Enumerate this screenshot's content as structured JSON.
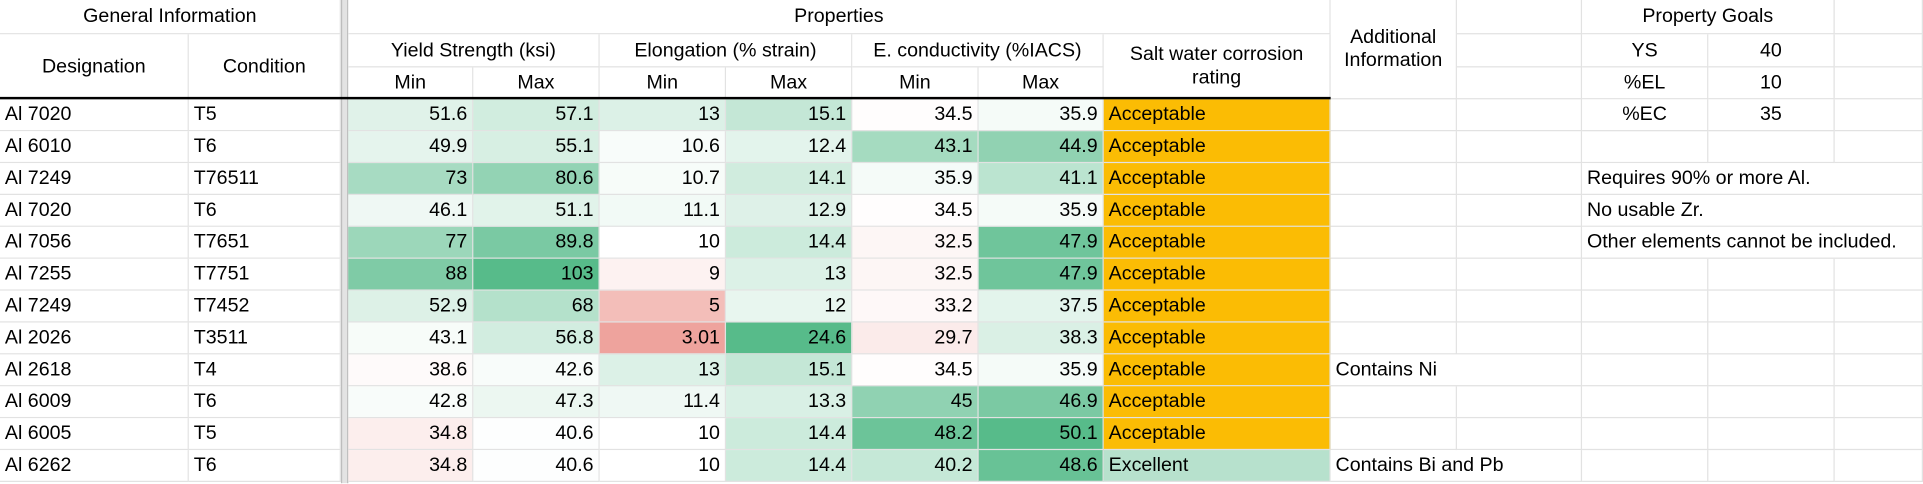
{
  "header": {
    "general_information": "General Information",
    "properties": "Properties",
    "additional_information": "Additional Information",
    "property_goals": "Property Goals"
  },
  "columns": {
    "designation": "Designation",
    "condition": "Condition",
    "rating": "Salt water corrosion rating",
    "groups": [
      "Yield Strength (ksi)",
      "Elongation (% strain)",
      "E. conductivity (%IACS)"
    ],
    "subheaders": [
      "Min",
      "Max",
      "Min",
      "Max",
      "Min",
      "Max"
    ]
  },
  "rows": [
    {
      "designation": "Al 7020",
      "condition": "T5",
      "values": [
        51.6,
        57.1,
        13,
        15.1,
        34.5,
        35.9
      ],
      "rating": "Acceptable"
    },
    {
      "designation": "Al 6010",
      "condition": "T6",
      "values": [
        49.9,
        55.1,
        10.6,
        12.4,
        43.1,
        44.9
      ],
      "rating": "Acceptable"
    },
    {
      "designation": "Al 7249",
      "condition": "T76511",
      "values": [
        73,
        80.6,
        10.7,
        14.1,
        35.9,
        41.1
      ],
      "rating": "Acceptable"
    },
    {
      "designation": "Al 7020",
      "condition": "T6",
      "values": [
        46.1,
        51.1,
        11.1,
        12.9,
        34.5,
        35.9
      ],
      "rating": "Acceptable"
    },
    {
      "designation": "Al 7056",
      "condition": "T7651",
      "values": [
        77,
        89.8,
        10,
        14.4,
        32.5,
        47.9
      ],
      "rating": "Acceptable"
    },
    {
      "designation": "Al 7255",
      "condition": "T7751",
      "values": [
        88,
        103,
        9,
        13,
        32.5,
        47.9
      ],
      "rating": "Acceptable"
    },
    {
      "designation": "Al 7249",
      "condition": "T7452",
      "values": [
        52.9,
        68,
        5,
        12,
        33.2,
        37.5
      ],
      "rating": "Acceptable"
    },
    {
      "designation": "Al 2026",
      "condition": "T3511",
      "values": [
        43.1,
        56.8,
        3.01,
        24.6,
        29.7,
        38.3
      ],
      "rating": "Acceptable"
    },
    {
      "designation": "Al 2618",
      "condition": "T4",
      "values": [
        38.6,
        42.6,
        13,
        15.1,
        34.5,
        35.9
      ],
      "rating": "Acceptable",
      "info": "Contains Ni"
    },
    {
      "designation": "Al 6009",
      "condition": "T6",
      "values": [
        42.8,
        47.3,
        11.4,
        13.3,
        45,
        46.9
      ],
      "rating": "Acceptable"
    },
    {
      "designation": "Al 6005",
      "condition": "T5",
      "values": [
        34.8,
        40.6,
        10,
        14.4,
        48.2,
        50.1
      ],
      "rating": "Acceptable"
    },
    {
      "designation": "Al 6262",
      "condition": "T6",
      "values": [
        34.8,
        40.6,
        10,
        14.4,
        40.2,
        48.6
      ],
      "rating": "Excellent",
      "info": "Contains Bi and Pb"
    }
  ],
  "goals": [
    {
      "label": "YS",
      "value": 40
    },
    {
      "label": "%EL",
      "value": 10
    },
    {
      "label": "%EC",
      "value": 35
    }
  ],
  "notes": [
    "Requires 90% or more Al.",
    "No usable Zr.",
    "Other elements cannot be included."
  ],
  "scale_colors": {
    "low": "#e67c73",
    "mid": "#ffffff",
    "high": "#57bb8a"
  },
  "rating_colors": {
    "Acceptable": "#fbbc04",
    "Excellent": "#b7e1cd"
  }
}
